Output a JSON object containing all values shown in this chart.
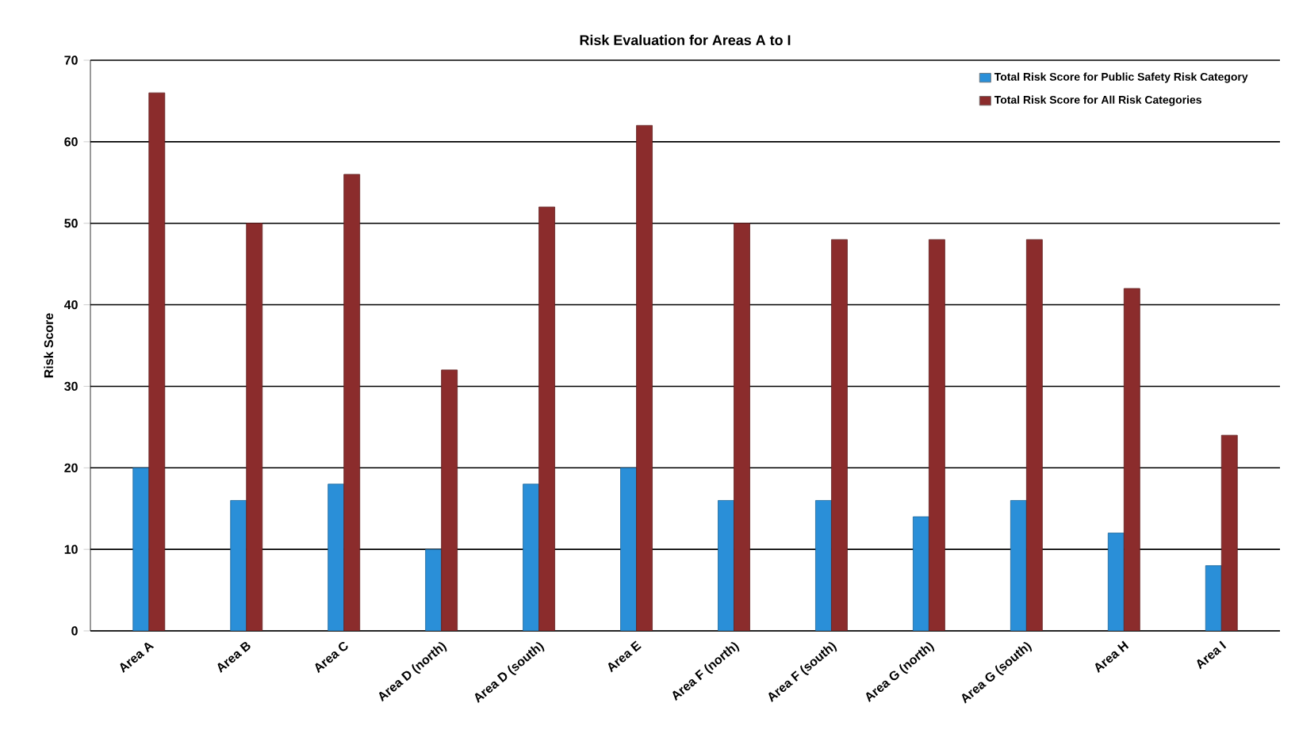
{
  "chart_data": {
    "type": "bar",
    "title": "Risk Evaluation for Areas A to I",
    "ylabel": "Risk Score",
    "categories": [
      "Area A",
      "Area B",
      "Area C",
      "Area D (north)",
      "Area D (south)",
      "Area E",
      "Area F (north)",
      "Area F (south)",
      "Area G (north)",
      "Area G (south)",
      "Area H",
      "Area I"
    ],
    "series": [
      {
        "name": "Total Risk Score for Public Safety Risk Category",
        "color": "#2a8fd8",
        "values": [
          20,
          16,
          18,
          10,
          18,
          20,
          16,
          16,
          14,
          16,
          12,
          8
        ]
      },
      {
        "name": "Total Risk Score for All Risk Categories",
        "color": "#8b2c2c",
        "values": [
          66,
          50,
          56,
          32,
          52,
          62,
          50,
          48,
          48,
          48,
          42,
          24
        ]
      }
    ],
    "ylim": [
      0,
      70
    ],
    "yticks": [
      0,
      10,
      20,
      30,
      40,
      50,
      60,
      70
    ],
    "grid": "y",
    "legend": "top right"
  }
}
